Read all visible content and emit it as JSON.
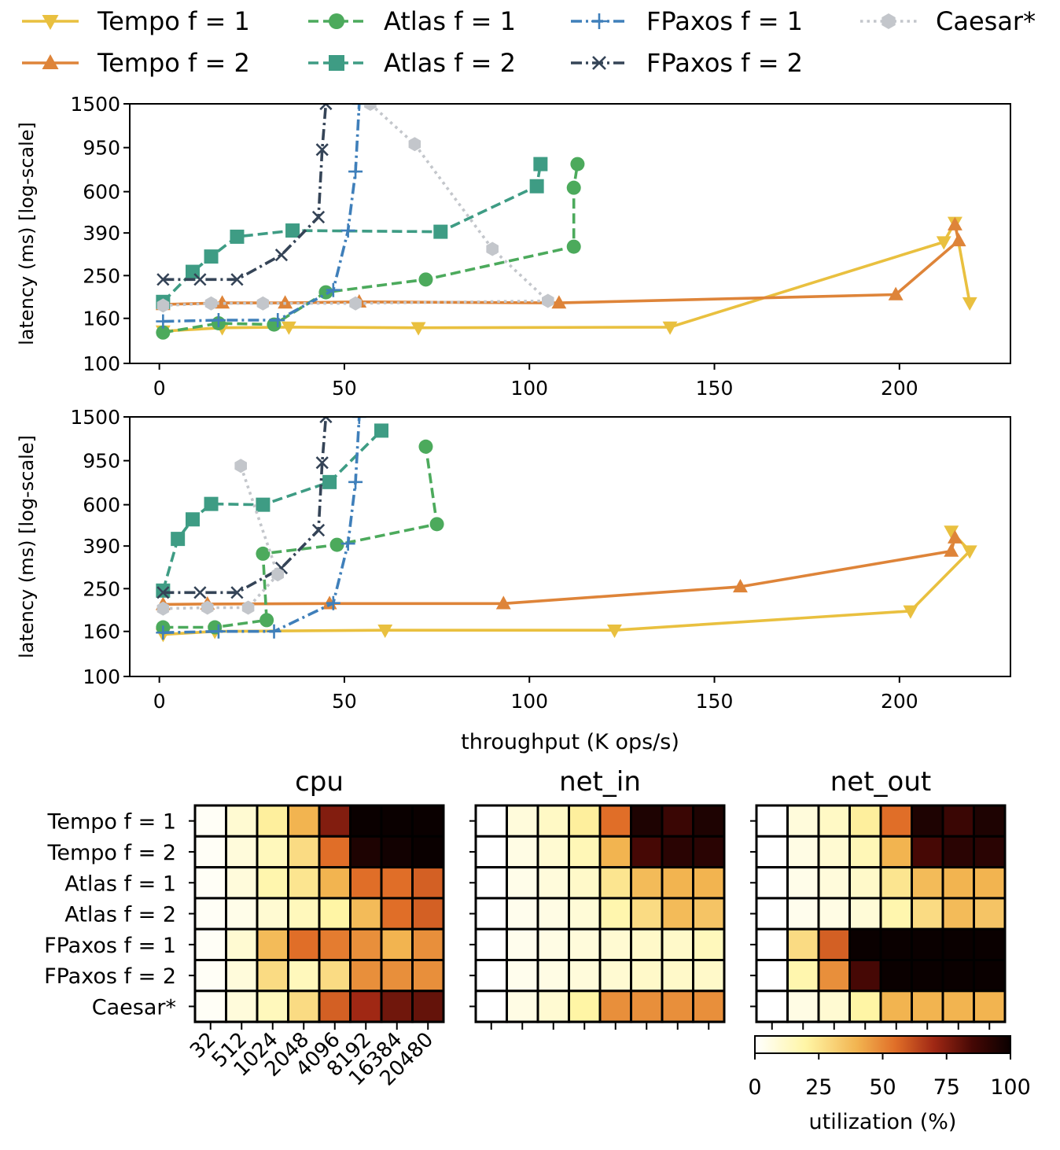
{
  "legend": {
    "entries": [
      {
        "label": "Tempo f = 1",
        "color": "#e9c03f",
        "marker": "triangle-down",
        "dash": "solid"
      },
      {
        "label": "Atlas f = 1",
        "color": "#4caa5c",
        "marker": "circle",
        "dash": "dashed"
      },
      {
        "label": "FPaxos f = 1",
        "color": "#3f7fba",
        "marker": "plus",
        "dash": "dashdot"
      },
      {
        "label": "Caesar*",
        "color": "#c3c6cb",
        "marker": "hexagon",
        "dash": "dotted"
      },
      {
        "label": "Tempo f = 2",
        "color": "#de8439",
        "marker": "triangle-up",
        "dash": "solid"
      },
      {
        "label": "Atlas f = 2",
        "color": "#3e9c84",
        "marker": "square",
        "dash": "dashed"
      },
      {
        "label": "FPaxos f = 2",
        "color": "#354457",
        "marker": "x",
        "dash": "dashdot"
      }
    ]
  },
  "chart_data": [
    {
      "type": "line",
      "panel": "top",
      "xlabel": "",
      "ylabel": "latency (ms) [log-scale]",
      "xlim": [
        -8,
        230
      ],
      "ylim": [
        100,
        1500
      ],
      "yscale": "log",
      "xticks": [
        0,
        50,
        100,
        150,
        200
      ],
      "xtick_labels": [
        "0",
        "50",
        "100",
        "150",
        "200"
      ],
      "yticks": [
        100,
        160,
        250,
        390,
        600,
        950,
        1500
      ],
      "ytick_labels": [
        "100",
        "160",
        "250",
        "390",
        "600",
        "950",
        "1500"
      ],
      "series": [
        {
          "name": "Tempo f = 1",
          "x": [
            1,
            17,
            35,
            70,
            138,
            212,
            215,
            219
          ],
          "y": [
            140,
            145,
            146,
            145,
            146,
            355,
            435,
            188
          ]
        },
        {
          "name": "Tempo f = 2",
          "x": [
            1,
            17,
            34,
            54,
            108,
            199,
            216,
            215
          ],
          "y": [
            185,
            188,
            188,
            190,
            188,
            205,
            360,
            425
          ]
        },
        {
          "name": "Atlas f = 1",
          "x": [
            1,
            16,
            31,
            45,
            72,
            112,
            112,
            113
          ],
          "y": [
            138,
            152,
            150,
            210,
            240,
            338,
            625,
            800
          ]
        },
        {
          "name": "Atlas f = 2",
          "x": [
            1,
            9,
            14,
            21,
            36,
            76,
            102,
            103
          ],
          "y": [
            190,
            260,
            305,
            375,
            400,
            395,
            635,
            800
          ]
        },
        {
          "name": "FPaxos f = 1",
          "x": [
            1,
            16,
            32,
            47,
            51,
            53,
            54
          ],
          "y": [
            155,
            157,
            157,
            215,
            400,
            740,
            1500
          ]
        },
        {
          "name": "FPaxos f = 2",
          "x": [
            1,
            11,
            21,
            33,
            43,
            44,
            45
          ],
          "y": [
            240,
            240,
            240,
            310,
            460,
            930,
            1500
          ]
        },
        {
          "name": "Caesar*",
          "x": [
            1,
            14,
            28,
            53,
            105,
            90,
            69,
            57
          ],
          "y": [
            183,
            187,
            187,
            187,
            192,
            330,
            985,
            1500
          ]
        }
      ]
    },
    {
      "type": "line",
      "panel": "middle",
      "xlabel": "throughput (K ops/s)",
      "ylabel": "latency (ms) [log-scale]",
      "xlim": [
        -8,
        230
      ],
      "ylim": [
        100,
        1500
      ],
      "yscale": "log",
      "xticks": [
        0,
        50,
        100,
        150,
        200
      ],
      "xtick_labels": [
        "0",
        "50",
        "100",
        "150",
        "200"
      ],
      "yticks": [
        100,
        160,
        250,
        390,
        600,
        950,
        1500
      ],
      "ytick_labels": [
        "100",
        "160",
        "250",
        "390",
        "600",
        "950",
        "1500"
      ],
      "series": [
        {
          "name": "Tempo f = 1",
          "x": [
            1,
            15,
            61,
            123,
            203,
            219,
            214
          ],
          "y": [
            155,
            160,
            162,
            162,
            198,
            370,
            455
          ]
        },
        {
          "name": "Tempo f = 2",
          "x": [
            1,
            13,
            46,
            93,
            157,
            214,
            215
          ],
          "y": [
            212,
            213,
            214,
            214,
            255,
            370,
            425
          ]
        },
        {
          "name": "Atlas f = 1",
          "x": [
            1,
            15,
            29,
            28,
            48,
            75,
            72
          ],
          "y": [
            167,
            167,
            180,
            360,
            395,
            490,
            1100
          ]
        },
        {
          "name": "Atlas f = 2",
          "x": [
            1,
            5,
            9,
            14,
            28,
            46,
            60
          ],
          "y": [
            245,
            420,
            515,
            605,
            600,
            760,
            1300
          ]
        },
        {
          "name": "FPaxos f = 1",
          "x": [
            1,
            16,
            31,
            47,
            51,
            53,
            54
          ],
          "y": [
            158,
            160,
            160,
            215,
            400,
            760,
            1500
          ]
        },
        {
          "name": "FPaxos f = 2",
          "x": [
            1,
            11,
            21,
            33,
            43,
            44,
            45
          ],
          "y": [
            240,
            240,
            240,
            310,
            460,
            930,
            1500
          ]
        },
        {
          "name": "Caesar*",
          "x": [
            1,
            13,
            24,
            32,
            22
          ],
          "y": [
            203,
            205,
            205,
            290,
            900
          ]
        }
      ]
    },
    {
      "type": "heatmap",
      "title": "cpu",
      "rows": [
        "Tempo f = 1",
        "Tempo f = 2",
        "Atlas f = 1",
        "Atlas f = 2",
        "FPaxos f = 1",
        "FPaxos f = 2",
        "Caesar*"
      ],
      "columns": [
        "32",
        "512",
        "1024",
        "2048",
        "4096",
        "8192",
        "16384",
        "20480"
      ],
      "values": [
        [
          2,
          10,
          22,
          40,
          75,
          100,
          100,
          100
        ],
        [
          2,
          8,
          15,
          28,
          55,
          95,
          98,
          100
        ],
        [
          2,
          8,
          18,
          25,
          40,
          55,
          55,
          58
        ],
        [
          2,
          5,
          10,
          15,
          20,
          38,
          55,
          58
        ],
        [
          2,
          10,
          38,
          55,
          52,
          48,
          40,
          48
        ],
        [
          2,
          8,
          28,
          15,
          28,
          48,
          48,
          48
        ],
        [
          2,
          8,
          15,
          28,
          58,
          70,
          78,
          80
        ]
      ],
      "xlabel": "",
      "ylabel": ""
    },
    {
      "type": "heatmap",
      "title": "net_in",
      "rows": [
        "Tempo f = 1",
        "Tempo f = 2",
        "Atlas f = 1",
        "Atlas f = 2",
        "FPaxos f = 1",
        "FPaxos f = 2",
        "Caesar*"
      ],
      "columns": [
        "32",
        "512",
        "1024",
        "2048",
        "4096",
        "8192",
        "16384",
        "20480"
      ],
      "values": [
        [
          0,
          8,
          13,
          22,
          55,
          95,
          88,
          95
        ],
        [
          0,
          6,
          10,
          16,
          40,
          85,
          92,
          92
        ],
        [
          0,
          5,
          8,
          12,
          25,
          38,
          40,
          40
        ],
        [
          0,
          4,
          6,
          9,
          18,
          28,
          38,
          35
        ],
        [
          0,
          4,
          6,
          8,
          10,
          12,
          12,
          15
        ],
        [
          0,
          4,
          6,
          8,
          10,
          12,
          12,
          12
        ],
        [
          0,
          6,
          10,
          20,
          48,
          48,
          48,
          48
        ]
      ],
      "xlabel": "",
      "ylabel": ""
    },
    {
      "type": "heatmap",
      "title": "net_out",
      "rows": [
        "Tempo f = 1",
        "Tempo f = 2",
        "Atlas f = 1",
        "Atlas f = 2",
        "FPaxos f = 1",
        "FPaxos f = 2",
        "Caesar*"
      ],
      "columns": [
        "32",
        "512",
        "1024",
        "2048",
        "4096",
        "8192",
        "16384",
        "20480"
      ],
      "values": [
        [
          0,
          8,
          13,
          22,
          55,
          95,
          88,
          95
        ],
        [
          0,
          6,
          10,
          16,
          40,
          85,
          92,
          92
        ],
        [
          0,
          5,
          8,
          12,
          25,
          38,
          40,
          40
        ],
        [
          0,
          4,
          6,
          9,
          18,
          28,
          38,
          35
        ],
        [
          0,
          28,
          58,
          100,
          100,
          100,
          100,
          100
        ],
        [
          0,
          18,
          48,
          85,
          100,
          100,
          100,
          100
        ],
        [
          0,
          6,
          10,
          20,
          40,
          40,
          40,
          40
        ]
      ],
      "xlabel": "",
      "ylabel": ""
    }
  ],
  "colorbar": {
    "label": "utilization (%)",
    "range": [
      0,
      100
    ],
    "ticks": [
      0,
      25,
      50,
      75,
      100
    ],
    "tick_labels": [
      "0",
      "25",
      "50",
      "75",
      "100"
    ],
    "colormap": "afmhot_r"
  }
}
